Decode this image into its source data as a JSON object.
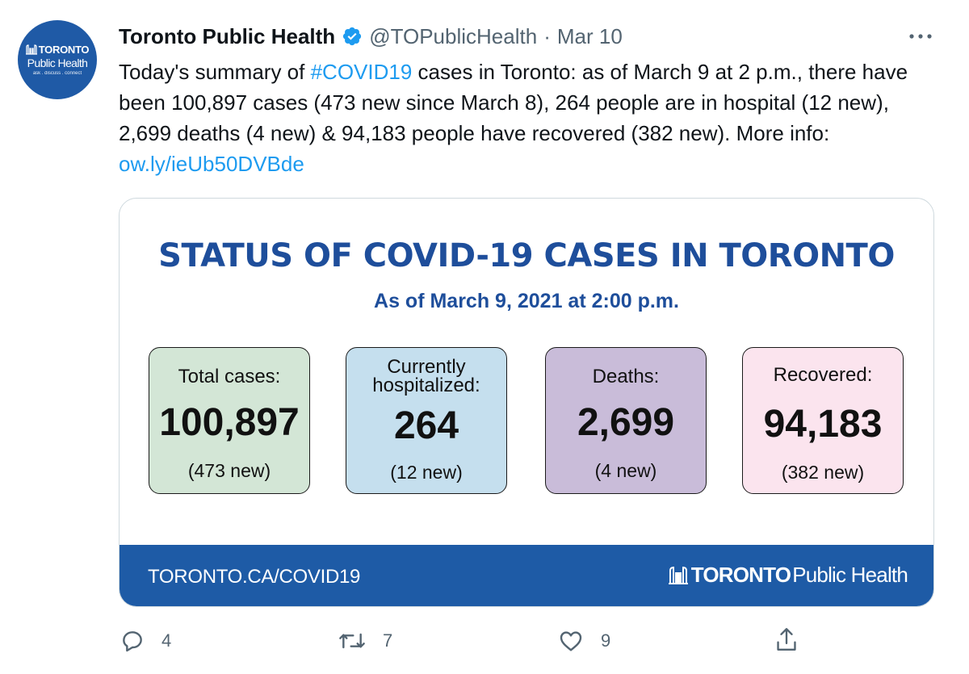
{
  "account": {
    "avatar_line1": "TORONTO",
    "avatar_line2": "Public Health",
    "avatar_line3": "ask . discuss . connect",
    "name": "Toronto Public Health",
    "handle": "@TOPublicHealth",
    "separator": "·",
    "date": "Mar 10"
  },
  "tweet": {
    "text_before_hashtag": "Today's summary of ",
    "hashtag": "#COVID19",
    "text_after_hashtag": " cases in Toronto: as of March 9 at 2 p.m., there have been 100,897 cases (473 new since March 8), 264 people are in hospital (12 new), 2,699 deaths (4 new) & 94,183 people have recovered (382 new). More info: ",
    "link": "ow.ly/ieUb50DVBde"
  },
  "card": {
    "title": "STATUS OF COVID-19 CASES IN TORONTO",
    "subtitle": "As of March 9, 2021 at 2:00 p.m.",
    "stats": [
      {
        "label_line1": "Total cases:",
        "label_line2": "",
        "value": "100,897",
        "new": "(473 new)",
        "color": "#d3e6d6"
      },
      {
        "label_line1": "Currently",
        "label_line2": "hospitalized:",
        "value": "264",
        "new": "(12 new)",
        "color": "#c5dfee"
      },
      {
        "label_line1": "Deaths:",
        "label_line2": "",
        "value": "2,699",
        "new": "(4 new)",
        "color": "#c9bcd9"
      },
      {
        "label_line1": "Recovered:",
        "label_line2": "",
        "value": "94,183",
        "new": "(382 new)",
        "color": "#fbe4ee"
      }
    ],
    "footer_url": "TORONTO.CA/COVID19",
    "footer_brand_bold": "TORONTO",
    "footer_brand_light": "Public Health"
  },
  "actions": {
    "reply_count": "4",
    "retweet_count": "7",
    "like_count": "9"
  },
  "colors": {
    "brand_blue": "#1e5ba6",
    "link_blue": "#1d9bf0",
    "verified_blue": "#1d9bf0",
    "muted_gray": "#536471"
  },
  "icons": [
    "verified-badge-icon",
    "more-options-icon",
    "reply-icon",
    "retweet-icon",
    "like-icon",
    "share-icon",
    "city-hall-logo-icon"
  ]
}
